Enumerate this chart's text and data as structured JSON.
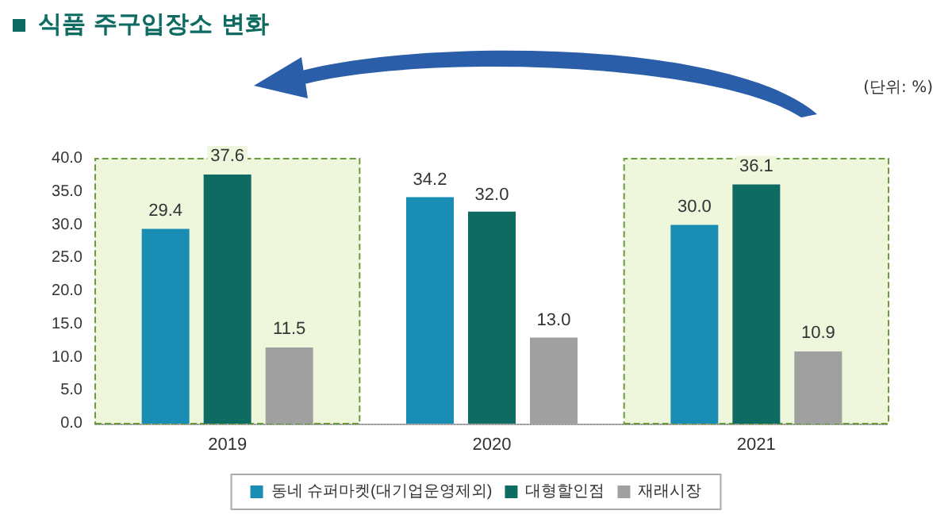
{
  "chart_data": {
    "type": "bar",
    "title": "식품 주구입장소 변화",
    "annotations": [
      "(단위: %)"
    ],
    "categories": [
      "2019",
      "2020",
      "2021"
    ],
    "series": [
      {
        "name": "동네 슈퍼마켓(대기업운영제외)",
        "color": "#1a8db5",
        "values": [
          29.4,
          34.2,
          30.0
        ],
        "value_labels": [
          "29.4",
          "34.2",
          "30.0"
        ]
      },
      {
        "name": "대형할인점",
        "color": "#0d6b62",
        "values": [
          37.6,
          32.0,
          36.1
        ],
        "value_labels": [
          "37.6",
          "32.0",
          "36.1"
        ]
      },
      {
        "name": "재래시장",
        "color": "#a0a0a0",
        "values": [
          11.5,
          13.0,
          10.9
        ],
        "value_labels": [
          "11.5",
          "13.0",
          "10.9"
        ]
      }
    ],
    "ylim": [
      0,
      40
    ],
    "yticks": [
      {
        "value": 0,
        "label": "0.0"
      },
      {
        "value": 5,
        "label": "5.0"
      },
      {
        "value": 10,
        "label": "10.0"
      },
      {
        "value": 15,
        "label": "15.0"
      },
      {
        "value": 20,
        "label": "20.0"
      },
      {
        "value": 25,
        "label": "25.0"
      },
      {
        "value": 30,
        "label": "30.0"
      },
      {
        "value": 35,
        "label": "35.0"
      },
      {
        "value": 40,
        "label": "40.0"
      }
    ],
    "bands": [
      {
        "axis": "x",
        "from": "2019",
        "to": "2019",
        "color": "#eef6dc"
      },
      {
        "axis": "x",
        "from": "2021",
        "to": "2021",
        "color": "#eef6dc"
      }
    ],
    "grid": false,
    "legend": "bottom"
  }
}
